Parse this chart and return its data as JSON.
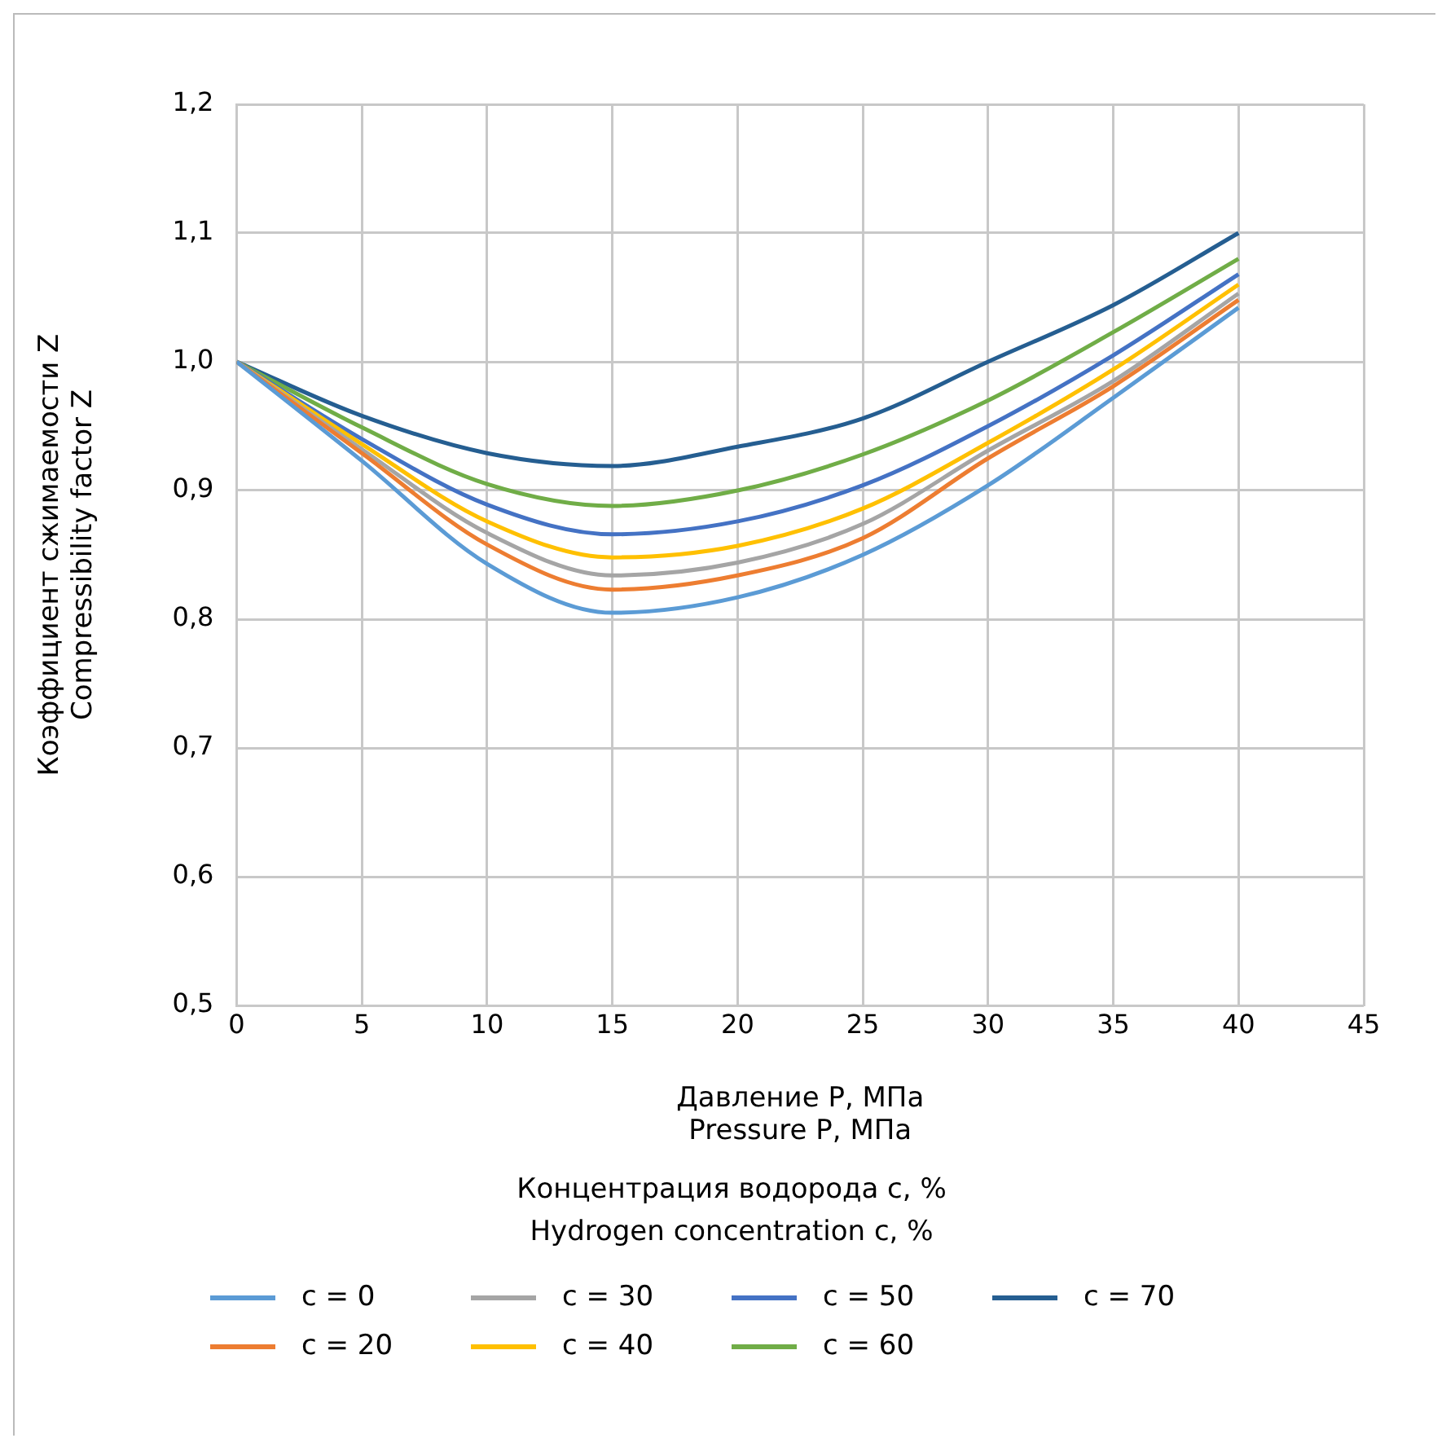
{
  "chart_data": {
    "type": "line",
    "xlabel": "Давление P, МПа\nPressure P, МПа",
    "ylabel": "Коэффициент сжимаемости Z\nCompressibility factor Z",
    "legend_title": "Концентрация водорода c, %\nHydrogen concentration c, %",
    "x": [
      0,
      5,
      10,
      15,
      20,
      25,
      30,
      35,
      40
    ],
    "series": [
      {
        "name": "c = 0",
        "color": "#5b9bd5",
        "values": [
          1.0,
          0.923,
          0.843,
          0.805,
          0.817,
          0.85,
          0.904,
          0.972,
          1.042
        ]
      },
      {
        "name": "c = 20",
        "color": "#ed7d31",
        "values": [
          1.0,
          0.929,
          0.858,
          0.823,
          0.834,
          0.863,
          0.925,
          0.981,
          1.048
        ]
      },
      {
        "name": "c = 30",
        "color": "#a5a5a5",
        "values": [
          1.0,
          0.932,
          0.867,
          0.834,
          0.844,
          0.874,
          0.931,
          0.985,
          1.053
        ]
      },
      {
        "name": "c = 40",
        "color": "#ffc000",
        "values": [
          1.0,
          0.936,
          0.876,
          0.848,
          0.857,
          0.886,
          0.937,
          0.994,
          1.06
        ]
      },
      {
        "name": "c = 50",
        "color": "#4472c4",
        "values": [
          1.0,
          0.94,
          0.889,
          0.866,
          0.876,
          0.904,
          0.95,
          1.005,
          1.068
        ]
      },
      {
        "name": "c = 60",
        "color": "#70ad47",
        "values": [
          1.0,
          0.949,
          0.905,
          0.888,
          0.9,
          0.928,
          0.97,
          1.023,
          1.08
        ]
      },
      {
        "name": "c = 70",
        "color": "#255e91",
        "values": [
          1.0,
          0.958,
          0.929,
          0.919,
          0.934,
          0.956,
          1.0,
          1.044,
          1.1
        ]
      }
    ],
    "xlim": [
      0,
      45
    ],
    "xticks": [
      0,
      5,
      10,
      15,
      20,
      25,
      30,
      35,
      40,
      45
    ],
    "ylim": [
      0.5,
      1.2
    ],
    "yticks": [
      {
        "value": 0.5,
        "label": "0,5"
      },
      {
        "value": 0.6,
        "label": "0,6"
      },
      {
        "value": 0.7,
        "label": "0,7"
      },
      {
        "value": 0.8,
        "label": "0,8"
      },
      {
        "value": 0.9,
        "label": "0,9"
      },
      {
        "value": 1.0,
        "label": "1,0"
      },
      {
        "value": 1.1,
        "label": "1,1"
      },
      {
        "value": 1.2,
        "label": "1,2"
      }
    ],
    "grid": true,
    "legend": "bottom",
    "marker": "none",
    "line_style": "solid"
  }
}
